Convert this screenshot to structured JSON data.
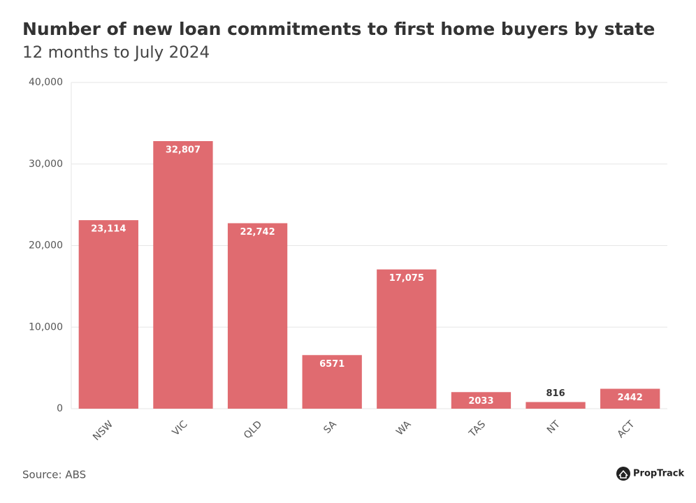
{
  "chart_data": {
    "type": "bar",
    "title": "Number of new loan commitments to first home buyers by state",
    "subtitle": "12 months to July 2024",
    "categories": [
      "NSW",
      "VIC",
      "QLD",
      "SA",
      "WA",
      "TAS",
      "NT",
      "ACT"
    ],
    "values": [
      23114,
      32807,
      22742,
      6571,
      17075,
      2033,
      816,
      2442
    ],
    "value_labels": [
      "23,114",
      "32,807",
      "22,742",
      "6571",
      "17,075",
      "2033",
      "816",
      "2442"
    ],
    "color": "#e06b70",
    "ylim": [
      0,
      40000
    ],
    "yticks": [
      0,
      {
        "value": 10000,
        "label": "10,000"
      },
      {
        "value": 20000,
        "label": "20,000"
      },
      {
        "value": 30000,
        "label": "30,000"
      },
      {
        "value": 40000,
        "label": "40,000"
      }
    ],
    "grid": true,
    "source": "Source: ABS",
    "brand": "PropTrack"
  }
}
